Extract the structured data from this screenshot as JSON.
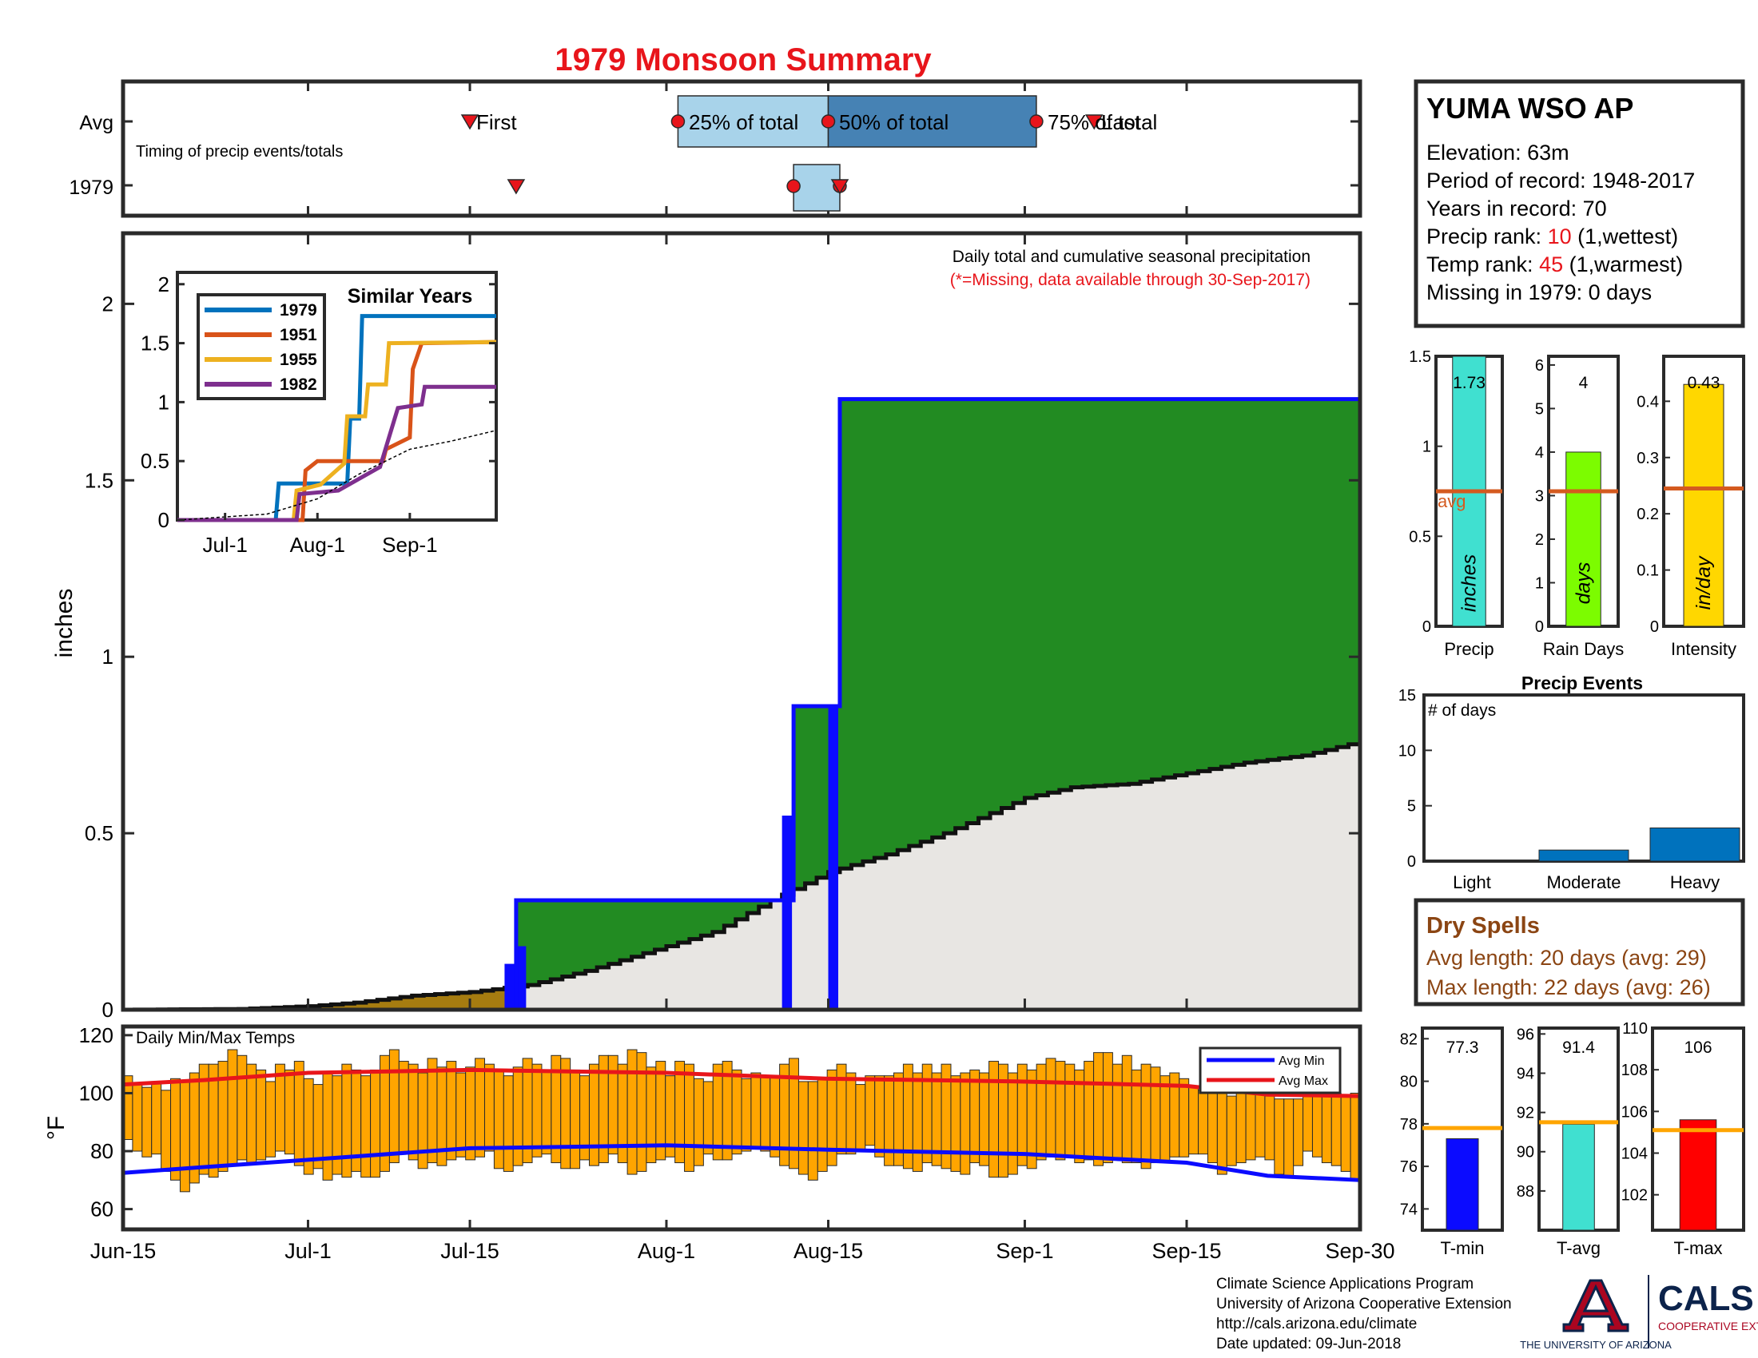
{
  "title": "1979 Monsoon Summary",
  "colors": {
    "title": "#e8151b",
    "green": "#228b22",
    "blue": "#0b0bff",
    "gray_fill": "#e8e6e3",
    "brown": "#a67c10",
    "orange_bar": "#ffa500",
    "avg_line": "#d45a1f",
    "t_avg_line": "#ffa500",
    "dry": "#8b4513",
    "red": "#e8151b",
    "box_light": "#a8d3ea",
    "box_dark": "#4682b4"
  },
  "timing": {
    "note": "Timing of precip events/totals",
    "rows": [
      "Avg",
      "1979"
    ],
    "avg_markers": {
      "first": "First",
      "p25": "25% of total",
      "p50": "50% of total",
      "p75": "75% of total",
      "last": "Last"
    },
    "avg_days": {
      "first": "2025-07-15",
      "p25": "2025-08-02",
      "p50": "2025-08-15",
      "p75": "2025-09-02",
      "last": "2025-09-07"
    },
    "y1979_days": {
      "first": "2025-07-19",
      "p25": "2025-08-12",
      "p50": "2025-08-16",
      "p75": "2025-08-16",
      "last": "2025-08-16"
    }
  },
  "x_axis": {
    "ticks": [
      "Jun-15",
      "Jul-1",
      "Jul-15",
      "Aug-1",
      "Aug-15",
      "Sep-1",
      "Sep-15",
      "Sep-30"
    ],
    "tick_dates": [
      "2025-06-15",
      "2025-07-01",
      "2025-07-15",
      "2025-08-01",
      "2025-08-15",
      "2025-09-01",
      "2025-09-15",
      "2025-09-30"
    ]
  },
  "precip_panel": {
    "ylabel": "inches",
    "yticks": [
      "0",
      "0.5",
      "1",
      "1.5",
      "2"
    ],
    "ylim": [
      0,
      2.2
    ],
    "note": "Daily total and cumulative seasonal precipitation",
    "missing_note": "(*=Missing, data available through 30-Sep-2017)"
  },
  "inset": {
    "title": "Similar Years",
    "yticks": [
      "0",
      "0.5",
      "1",
      "1.5",
      "2"
    ],
    "xticks": [
      "Jul-1",
      "Aug-1",
      "Sep-1"
    ],
    "legend": [
      "1979",
      "1951",
      "1955",
      "1982"
    ]
  },
  "temps_panel": {
    "title": "Daily Min/Max Temps",
    "ylabel": "°F",
    "yticks": [
      "60",
      "80",
      "100",
      "120"
    ],
    "legend": [
      "Avg Min",
      "Avg Max"
    ]
  },
  "station": {
    "name": "YUMA WSO AP",
    "elevation": "Elevation: 63m",
    "period": "Period of record: 1948-2017",
    "years": "Years in record: 70",
    "precip_rank_label": "Precip rank: ",
    "precip_rank": "10",
    "precip_rank_suffix": " (1,wettest)",
    "temp_rank_label": "Temp rank: ",
    "temp_rank": "45",
    "temp_rank_suffix": " (1,warmest)",
    "missing": "Missing in 1979: 0 days"
  },
  "summary_bars": [
    {
      "label": "Precip",
      "unit": "inches",
      "value_text": "1.73",
      "value": 1.73,
      "avg": 0.75,
      "ymax": 1.5,
      "yticks": [
        "0",
        "0.5",
        "1",
        "1.5"
      ],
      "color": "#40e0d0",
      "avg_label": "avg"
    },
    {
      "label": "Rain Days",
      "unit": "days",
      "value_text": "4",
      "value": 4,
      "avg": 3.1,
      "ymax": 6.2,
      "yticks": [
        "0",
        "1",
        "2",
        "3",
        "4",
        "5",
        "6"
      ],
      "color": "#7cfc00"
    },
    {
      "label": "Intensity",
      "unit": "in/day",
      "value_text": "0.43",
      "value": 0.43,
      "avg": 0.245,
      "ymax": 0.48,
      "yticks": [
        "0",
        "0.1",
        "0.2",
        "0.3",
        "0.4"
      ],
      "color": "#ffd700"
    }
  ],
  "precip_events": {
    "title": "Precip Events",
    "ylabel": "# of days",
    "yticks": [
      "0",
      "5",
      "10",
      "15"
    ],
    "categories": [
      "Light",
      "Moderate",
      "Heavy"
    ],
    "values": [
      0,
      1,
      3
    ]
  },
  "dry_spells": {
    "title": "Dry Spells",
    "avg_length": "Avg length: 20 days (avg: 29)",
    "max_length": "Max length: 22 days (avg: 26)"
  },
  "temp_bars": [
    {
      "label": "T-min",
      "value_text": "77.3",
      "value": 77.3,
      "avg": 77.8,
      "ylim": [
        73,
        82.5
      ],
      "yticks": [
        "74",
        "76",
        "78",
        "80",
        "82"
      ],
      "color": "#0b0bff"
    },
    {
      "label": "T-avg",
      "value_text": "91.4",
      "value": 91.4,
      "avg": 91.5,
      "ylim": [
        86,
        96.3
      ],
      "yticks": [
        "88",
        "90",
        "92",
        "94",
        "96"
      ],
      "color": "#40e0d0"
    },
    {
      "label": "T-max",
      "value_text": "106",
      "value": 105.6,
      "avg": 105.1,
      "ylim": [
        100.3,
        110
      ],
      "yticks": [
        "102",
        "104",
        "106",
        "108",
        "110"
      ],
      "color": "#ff0000"
    }
  ],
  "footer": {
    "line1": "Climate Science Applications Program",
    "line2": "University of Arizona Cooperative Extension",
    "line3": "http://cals.arizona.edu/climate",
    "line4": " Date updated: 09-Jun-2018",
    "logo_ua": "THE UNIVERSITY OF ARIZONA",
    "logo_cals": "CALS",
    "logo_coop": "COOPERATIVE EXTENSION"
  },
  "chart_data": {
    "type": "area",
    "title": "1979 Monsoon Summary",
    "season": [
      "2025-06-15",
      "2025-09-30"
    ],
    "daily_precip_1979": [
      {
        "date": "2025-07-18",
        "value": 0.13
      },
      {
        "date": "2025-07-19",
        "value": 0.18
      },
      {
        "date": "2025-08-11",
        "value": 0.55
      },
      {
        "date": "2025-08-15",
        "value": 0.86
      }
    ],
    "cumulative_1979": [
      {
        "date": "2025-06-15",
        "value": 0
      },
      {
        "date": "2025-07-18",
        "value": 0
      },
      {
        "date": "2025-07-19",
        "value": 0.31
      },
      {
        "date": "2025-08-11",
        "value": 0.31
      },
      {
        "date": "2025-08-12",
        "value": 0.86
      },
      {
        "date": "2025-08-15",
        "value": 0.86
      },
      {
        "date": "2025-08-16",
        "value": 1.73
      },
      {
        "date": "2025-09-30",
        "value": 1.73
      }
    ],
    "cumulative_avg": [
      {
        "date": "2025-06-15",
        "value": 0
      },
      {
        "date": "2025-06-25",
        "value": 0.002
      },
      {
        "date": "2025-07-01",
        "value": 0.01
      },
      {
        "date": "2025-07-05",
        "value": 0.02
      },
      {
        "date": "2025-07-10",
        "value": 0.04
      },
      {
        "date": "2025-07-15",
        "value": 0.05
      },
      {
        "date": "2025-07-20",
        "value": 0.07
      },
      {
        "date": "2025-07-25",
        "value": 0.11
      },
      {
        "date": "2025-08-01",
        "value": 0.18
      },
      {
        "date": "2025-08-05",
        "value": 0.22
      },
      {
        "date": "2025-08-10",
        "value": 0.31
      },
      {
        "date": "2025-08-15",
        "value": 0.39
      },
      {
        "date": "2025-08-20",
        "value": 0.44
      },
      {
        "date": "2025-08-25",
        "value": 0.5
      },
      {
        "date": "2025-09-01",
        "value": 0.6
      },
      {
        "date": "2025-09-05",
        "value": 0.63
      },
      {
        "date": "2025-09-10",
        "value": 0.64
      },
      {
        "date": "2025-09-15",
        "value": 0.67
      },
      {
        "date": "2025-09-20",
        "value": 0.7
      },
      {
        "date": "2025-09-25",
        "value": 0.72
      },
      {
        "date": "2025-09-30",
        "value": 0.76
      }
    ],
    "inset_series": [
      {
        "name": "1979",
        "color": "#0072bd",
        "points": [
          {
            "date": "2025-06-15",
            "value": 0
          },
          {
            "date": "2025-07-18",
            "value": 0
          },
          {
            "date": "2025-07-19",
            "value": 0.31
          },
          {
            "date": "2025-08-11",
            "value": 0.31
          },
          {
            "date": "2025-08-12",
            "value": 0.86
          },
          {
            "date": "2025-08-15",
            "value": 0.86
          },
          {
            "date": "2025-08-16",
            "value": 1.73
          },
          {
            "date": "2025-09-30",
            "value": 1.73
          }
        ]
      },
      {
        "name": "1951",
        "color": "#d95319",
        "points": [
          {
            "date": "2025-06-15",
            "value": 0
          },
          {
            "date": "2025-07-27",
            "value": 0
          },
          {
            "date": "2025-07-28",
            "value": 0.42
          },
          {
            "date": "2025-08-01",
            "value": 0.5
          },
          {
            "date": "2025-08-23",
            "value": 0.5
          },
          {
            "date": "2025-08-24",
            "value": 0.6
          },
          {
            "date": "2025-09-01",
            "value": 0.7
          },
          {
            "date": "2025-09-02",
            "value": 1.28
          },
          {
            "date": "2025-09-05",
            "value": 1.5
          },
          {
            "date": "2025-09-30",
            "value": 1.51
          }
        ]
      },
      {
        "name": "1955",
        "color": "#edb120",
        "points": [
          {
            "date": "2025-06-15",
            "value": 0
          },
          {
            "date": "2025-07-24",
            "value": 0
          },
          {
            "date": "2025-07-25",
            "value": 0.25
          },
          {
            "date": "2025-08-02",
            "value": 0.3
          },
          {
            "date": "2025-08-10",
            "value": 0.48
          },
          {
            "date": "2025-08-11",
            "value": 0.88
          },
          {
            "date": "2025-08-17",
            "value": 0.88
          },
          {
            "date": "2025-08-18",
            "value": 1.15
          },
          {
            "date": "2025-08-24",
            "value": 1.15
          },
          {
            "date": "2025-08-25",
            "value": 1.5
          },
          {
            "date": "2025-09-30",
            "value": 1.51
          }
        ]
      },
      {
        "name": "1982",
        "color": "#7e2f8e",
        "points": [
          {
            "date": "2025-06-15",
            "value": 0
          },
          {
            "date": "2025-07-25",
            "value": 0
          },
          {
            "date": "2025-07-26",
            "value": 0.22
          },
          {
            "date": "2025-08-08",
            "value": 0.25
          },
          {
            "date": "2025-08-22",
            "value": 0.45
          },
          {
            "date": "2025-08-28",
            "value": 0.95
          },
          {
            "date": "2025-09-05",
            "value": 0.98
          },
          {
            "date": "2025-09-06",
            "value": 1.13
          },
          {
            "date": "2025-09-30",
            "value": 1.13
          }
        ]
      },
      {
        "name": "avg",
        "color": "#000000",
        "dashed": true,
        "points": [
          {
            "date": "2025-06-15",
            "value": 0
          },
          {
            "date": "2025-07-15",
            "value": 0.05
          },
          {
            "date": "2025-08-01",
            "value": 0.18
          },
          {
            "date": "2025-08-15",
            "value": 0.39
          },
          {
            "date": "2025-09-01",
            "value": 0.6
          },
          {
            "date": "2025-09-15",
            "value": 0.67
          },
          {
            "date": "2025-09-30",
            "value": 0.76
          }
        ]
      }
    ],
    "daily_temps": [
      [
        84,
        106
      ],
      [
        80,
        103
      ],
      [
        78,
        102
      ],
      [
        79,
        104
      ],
      [
        73,
        101
      ],
      [
        70,
        105
      ],
      [
        66,
        104
      ],
      [
        69,
        107
      ],
      [
        72,
        110
      ],
      [
        71,
        110
      ],
      [
        73,
        111
      ],
      [
        75,
        115
      ],
      [
        77,
        113
      ],
      [
        76,
        110
      ],
      [
        77,
        108
      ],
      [
        78,
        104
      ],
      [
        80,
        110
      ],
      [
        79,
        108
      ],
      [
        75,
        111
      ],
      [
        72,
        105
      ],
      [
        74,
        103
      ],
      [
        70,
        107
      ],
      [
        72,
        106
      ],
      [
        71,
        110
      ],
      [
        73,
        108
      ],
      [
        71,
        106
      ],
      [
        71,
        108
      ],
      [
        73,
        113
      ],
      [
        76,
        115
      ],
      [
        79,
        111
      ],
      [
        77,
        110
      ],
      [
        74,
        107
      ],
      [
        76,
        112
      ],
      [
        75,
        109
      ],
      [
        77,
        111
      ],
      [
        78,
        107
      ],
      [
        77,
        109
      ],
      [
        78,
        112
      ],
      [
        80,
        110
      ],
      [
        74,
        108
      ],
      [
        73,
        106
      ],
      [
        75,
        109
      ],
      [
        76,
        112
      ],
      [
        78,
        110
      ],
      [
        79,
        108
      ],
      [
        76,
        113
      ],
      [
        74,
        112
      ],
      [
        74,
        108
      ],
      [
        77,
        106
      ],
      [
        75,
        110
      ],
      [
        76,
        113
      ],
      [
        79,
        113
      ],
      [
        76,
        110
      ],
      [
        72,
        115
      ],
      [
        73,
        114
      ],
      [
        76,
        109
      ],
      [
        77,
        111
      ],
      [
        78,
        106
      ],
      [
        76,
        111
      ],
      [
        73,
        110
      ],
      [
        75,
        105
      ],
      [
        79,
        104
      ],
      [
        77,
        110
      ],
      [
        77,
        111
      ],
      [
        79,
        108
      ],
      [
        80,
        105
      ],
      [
        81,
        107
      ],
      [
        80,
        106
      ],
      [
        78,
        106
      ],
      [
        75,
        110
      ],
      [
        74,
        112
      ],
      [
        72,
        104
      ],
      [
        70,
        104
      ],
      [
        73,
        105
      ],
      [
        75,
        108
      ],
      [
        79,
        110
      ],
      [
        79,
        107
      ],
      [
        80,
        103
      ],
      [
        82,
        106
      ],
      [
        78,
        106
      ],
      [
        75,
        106
      ],
      [
        75,
        107
      ],
      [
        74,
        110
      ],
      [
        73,
        107
      ],
      [
        76,
        110
      ],
      [
        75,
        107
      ],
      [
        74,
        110
      ],
      [
        73,
        106
      ],
      [
        72,
        107
      ],
      [
        76,
        108
      ],
      [
        75,
        107
      ],
      [
        71,
        111
      ],
      [
        71,
        110
      ],
      [
        72,
        107
      ],
      [
        75,
        110
      ],
      [
        74,
        108
      ],
      [
        77,
        110
      ],
      [
        78,
        112
      ],
      [
        77,
        111
      ],
      [
        78,
        110
      ],
      [
        76,
        108
      ],
      [
        77,
        111
      ],
      [
        75,
        114
      ],
      [
        76,
        114
      ],
      [
        77,
        110
      ],
      [
        76,
        113
      ],
      [
        76,
        108
      ],
      [
        74,
        110
      ],
      [
        76,
        109
      ],
      [
        76,
        106
      ],
      [
        78,
        107
      ],
      [
        78,
        105
      ],
      [
        79,
        102
      ],
      [
        79,
        101
      ],
      [
        76,
        103
      ],
      [
        72,
        104
      ],
      [
        75,
        99
      ],
      [
        76,
        100
      ],
      [
        77,
        101
      ],
      [
        78,
        100
      ],
      [
        77,
        99
      ],
      [
        72,
        98
      ],
      [
        71,
        98
      ],
      [
        75,
        98
      ],
      [
        80,
        101
      ],
      [
        78,
        100
      ],
      [
        76,
        99
      ],
      [
        75,
        100
      ],
      [
        73,
        99
      ],
      [
        70,
        100
      ]
    ],
    "avg_min": [
      {
        "date": "2025-06-15",
        "value": 72.5
      },
      {
        "date": "2025-06-22",
        "value": 74.5
      },
      {
        "date": "2025-07-01",
        "value": 77
      },
      {
        "date": "2025-07-15",
        "value": 81
      },
      {
        "date": "2025-08-01",
        "value": 82
      },
      {
        "date": "2025-08-15",
        "value": 80.5
      },
      {
        "date": "2025-09-01",
        "value": 79
      },
      {
        "date": "2025-09-15",
        "value": 76
      },
      {
        "date": "2025-09-22",
        "value": 71.5
      },
      {
        "date": "2025-09-30",
        "value": 70
      }
    ],
    "avg_max": [
      {
        "date": "2025-06-15",
        "value": 103
      },
      {
        "date": "2025-06-22",
        "value": 104.5
      },
      {
        "date": "2025-07-01",
        "value": 107
      },
      {
        "date": "2025-07-15",
        "value": 108
      },
      {
        "date": "2025-08-01",
        "value": 107
      },
      {
        "date": "2025-08-15",
        "value": 105
      },
      {
        "date": "2025-09-01",
        "value": 104
      },
      {
        "date": "2025-09-15",
        "value": 102.5
      },
      {
        "date": "2025-09-22",
        "value": 99.5
      },
      {
        "date": "2025-09-30",
        "value": 99
      }
    ]
  }
}
